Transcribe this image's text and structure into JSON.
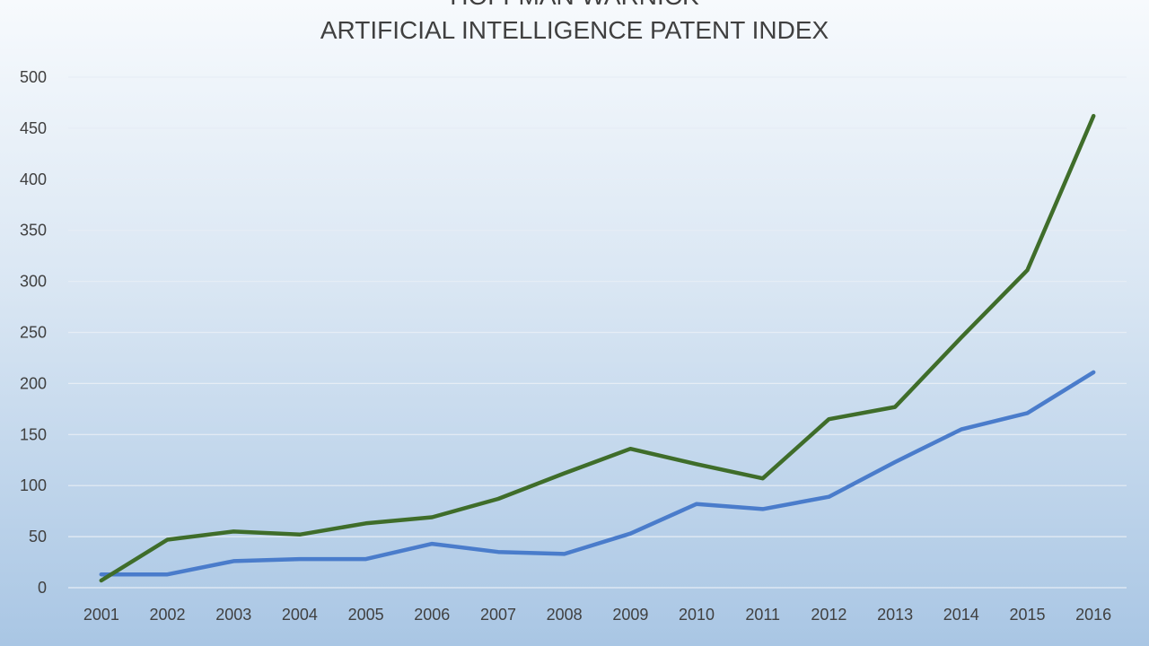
{
  "chart_data": {
    "type": "line",
    "title_lines": [
      "HOFFMAN WARNICK",
      "ARTIFICIAL INTELLIGENCE PATENT INDEX"
    ],
    "xlabel": "",
    "ylabel": "",
    "categories": [
      "2001",
      "2002",
      "2003",
      "2004",
      "2005",
      "2006",
      "2007",
      "2008",
      "2009",
      "2010",
      "2011",
      "2012",
      "2013",
      "2014",
      "2015",
      "2016"
    ],
    "yticks": [
      "0",
      "50",
      "100",
      "150",
      "200",
      "250",
      "300",
      "350",
      "400",
      "450",
      "500"
    ],
    "ylim": [
      0,
      500
    ],
    "grid": true,
    "legend": "none",
    "series": [
      {
        "color": "#4a7ccb",
        "values": [
          13,
          13,
          26,
          28,
          28,
          43,
          35,
          33,
          53,
          82,
          77,
          89,
          123,
          155,
          171,
          211
        ]
      },
      {
        "color": "#3f6d2a",
        "values": [
          7,
          47,
          55,
          52,
          63,
          69,
          87,
          112,
          136,
          121,
          107,
          165,
          177,
          245,
          311,
          462
        ]
      }
    ]
  }
}
